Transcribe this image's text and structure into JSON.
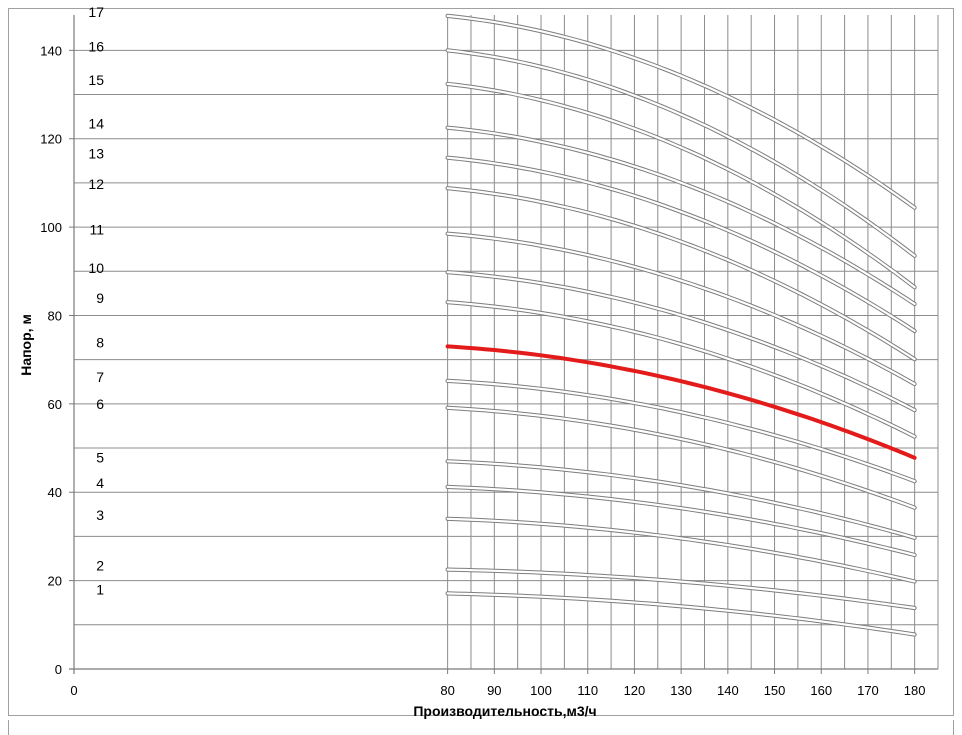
{
  "chart_data": {
    "type": "line",
    "title": "",
    "xlabel": "Производительность,м3/ч",
    "ylabel": "Напор, м",
    "xlim": [
      0,
      185
    ],
    "ylim": [
      0,
      148
    ],
    "x_ticks": [
      0,
      80,
      90,
      100,
      110,
      120,
      130,
      140,
      150,
      160,
      170,
      180
    ],
    "y_ticks": [
      0,
      20,
      40,
      60,
      80,
      100,
      120,
      140
    ],
    "grid": true,
    "legend": "none",
    "highlight_color": "#e31b1b",
    "curve_color": "#b4b4b4",
    "x": [
      80,
      180
    ],
    "series": [
      {
        "label": "1",
        "values": [
          17.1,
          7.8
        ]
      },
      {
        "label": "2",
        "values": [
          22.5,
          13.8
        ]
      },
      {
        "label": "3",
        "values": [
          34.0,
          19.8
        ]
      },
      {
        "label": "4",
        "values": [
          41.2,
          25.8
        ]
      },
      {
        "label": "5",
        "values": [
          47.0,
          29.7
        ]
      },
      {
        "label": "6",
        "values": [
          59.1,
          36.5
        ]
      },
      {
        "label": "7",
        "values": [
          65.2,
          42.5
        ]
      },
      {
        "label": "8",
        "values": [
          73.0,
          47.8
        ],
        "highlight": true
      },
      {
        "label": "9",
        "values": [
          83.0,
          52.6
        ]
      },
      {
        "label": "10",
        "values": [
          89.8,
          58.6
        ]
      },
      {
        "label": "11",
        "values": [
          98.5,
          64.5
        ]
      },
      {
        "label": "12",
        "values": [
          108.8,
          70.1
        ]
      },
      {
        "label": "13",
        "values": [
          115.7,
          76.5
        ]
      },
      {
        "label": "14",
        "values": [
          122.5,
          82.6
        ]
      },
      {
        "label": "15",
        "values": [
          132.4,
          86.4
        ]
      },
      {
        "label": "16",
        "values": [
          140.0,
          93.5
        ]
      },
      {
        "label": "17",
        "values": [
          147.8,
          104.4
        ]
      }
    ]
  }
}
